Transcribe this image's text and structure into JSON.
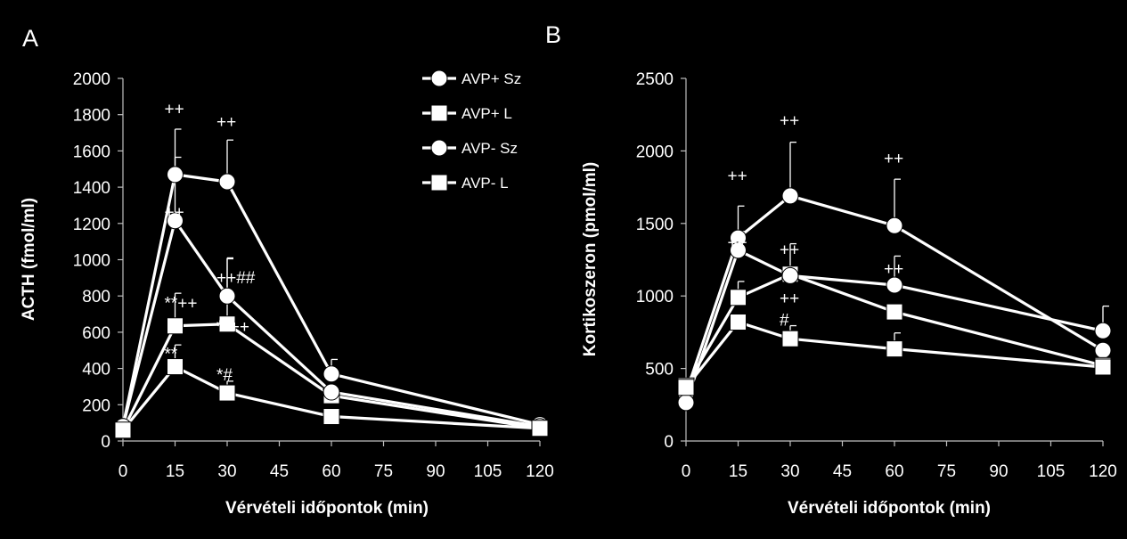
{
  "chart_data": [
    {
      "type": "line",
      "panel_label": "A",
      "xlabel": "Vérvételi időpontok (min)",
      "ylabel": "ACTH (fmol/ml)",
      "xlim": [
        0,
        120
      ],
      "ylim": [
        0,
        2000
      ],
      "x_ticks": [
        0,
        15,
        30,
        45,
        60,
        75,
        90,
        105,
        120
      ],
      "y_ticks": [
        0,
        200,
        400,
        600,
        800,
        1000,
        1200,
        1400,
        1600,
        1800,
        2000
      ],
      "x": [
        0,
        15,
        30,
        60,
        120
      ],
      "grid": false,
      "legend_position": "top-right",
      "series": [
        {
          "name": "AVP+ Sz",
          "marker": "circle",
          "values": [
            80,
            1470,
            1430,
            370,
            90
          ],
          "error": [
            0,
            250,
            230,
            80,
            0
          ]
        },
        {
          "name": "AVP+ L",
          "marker": "square",
          "values": [
            60,
            635,
            645,
            250,
            70
          ],
          "error": [
            0,
            180,
            360,
            0,
            0
          ]
        },
        {
          "name": "AVP- Sz",
          "marker": "circle",
          "values": [
            80,
            1215,
            800,
            270,
            80
          ],
          "error": [
            0,
            350,
            210,
            0,
            0
          ]
        },
        {
          "name": "AVP- L",
          "marker": "square",
          "values": [
            60,
            410,
            265,
            135,
            70
          ],
          "error": [
            0,
            120,
            65,
            0,
            0
          ]
        }
      ],
      "annotations": [
        {
          "text": "++",
          "x": 15,
          "y": 1800
        },
        {
          "text": "++",
          "x": 30,
          "y": 1730
        },
        {
          "text": "++",
          "x": 15,
          "y": 1230
        },
        {
          "text": "++##",
          "x": 30,
          "y": 870
        },
        {
          "text": "**++",
          "x": 15,
          "y": 730
        },
        {
          "text": "**++",
          "x": 30,
          "y": 600
        },
        {
          "text": "**",
          "x": 15,
          "y": 450
        },
        {
          "text": "*#",
          "x": 30,
          "y": 335
        }
      ]
    },
    {
      "type": "line",
      "panel_label": "B",
      "xlabel": "Vérvételi időpontok (min)",
      "ylabel": "Kortikoszeron (pmol/ml)",
      "xlim": [
        0,
        120
      ],
      "ylim": [
        0,
        2500
      ],
      "x_ticks": [
        0,
        15,
        30,
        45,
        60,
        75,
        90,
        105,
        120
      ],
      "y_ticks": [
        0,
        500,
        1000,
        1500,
        2000,
        2500
      ],
      "x": [
        0,
        15,
        30,
        60,
        120
      ],
      "grid": false,
      "series": [
        {
          "name": "AVP+ Sz",
          "marker": "circle",
          "values": [
            330,
            1400,
            1690,
            1485,
            625
          ],
          "error": [
            0,
            220,
            370,
            320,
            0
          ]
        },
        {
          "name": "AVP+ L",
          "marker": "square",
          "values": [
            380,
            990,
            1150,
            890,
            520
          ],
          "error": [
            0,
            110,
            210,
            0,
            0
          ]
        },
        {
          "name": "AVP- Sz",
          "marker": "circle",
          "values": [
            265,
            1315,
            1140,
            1075,
            760
          ],
          "error": [
            0,
            130,
            0,
            200,
            170
          ]
        },
        {
          "name": "AVP- L",
          "marker": "square",
          "values": [
            370,
            820,
            705,
            635,
            510
          ],
          "error": [
            0,
            0,
            90,
            110,
            0
          ]
        }
      ],
      "annotations": [
        {
          "text": "++",
          "x": 15,
          "y": 1790
        },
        {
          "text": "++",
          "x": 30,
          "y": 2170
        },
        {
          "text": "++",
          "x": 60,
          "y": 1910
        },
        {
          "text": "++",
          "x": 15,
          "y": 1330
        },
        {
          "text": "++",
          "x": 30,
          "y": 1280
        },
        {
          "text": "++",
          "x": 60,
          "y": 1150
        },
        {
          "text": "++",
          "x": 30,
          "y": 945
        },
        {
          "text": "#",
          "x": 30,
          "y": 795
        }
      ]
    }
  ]
}
